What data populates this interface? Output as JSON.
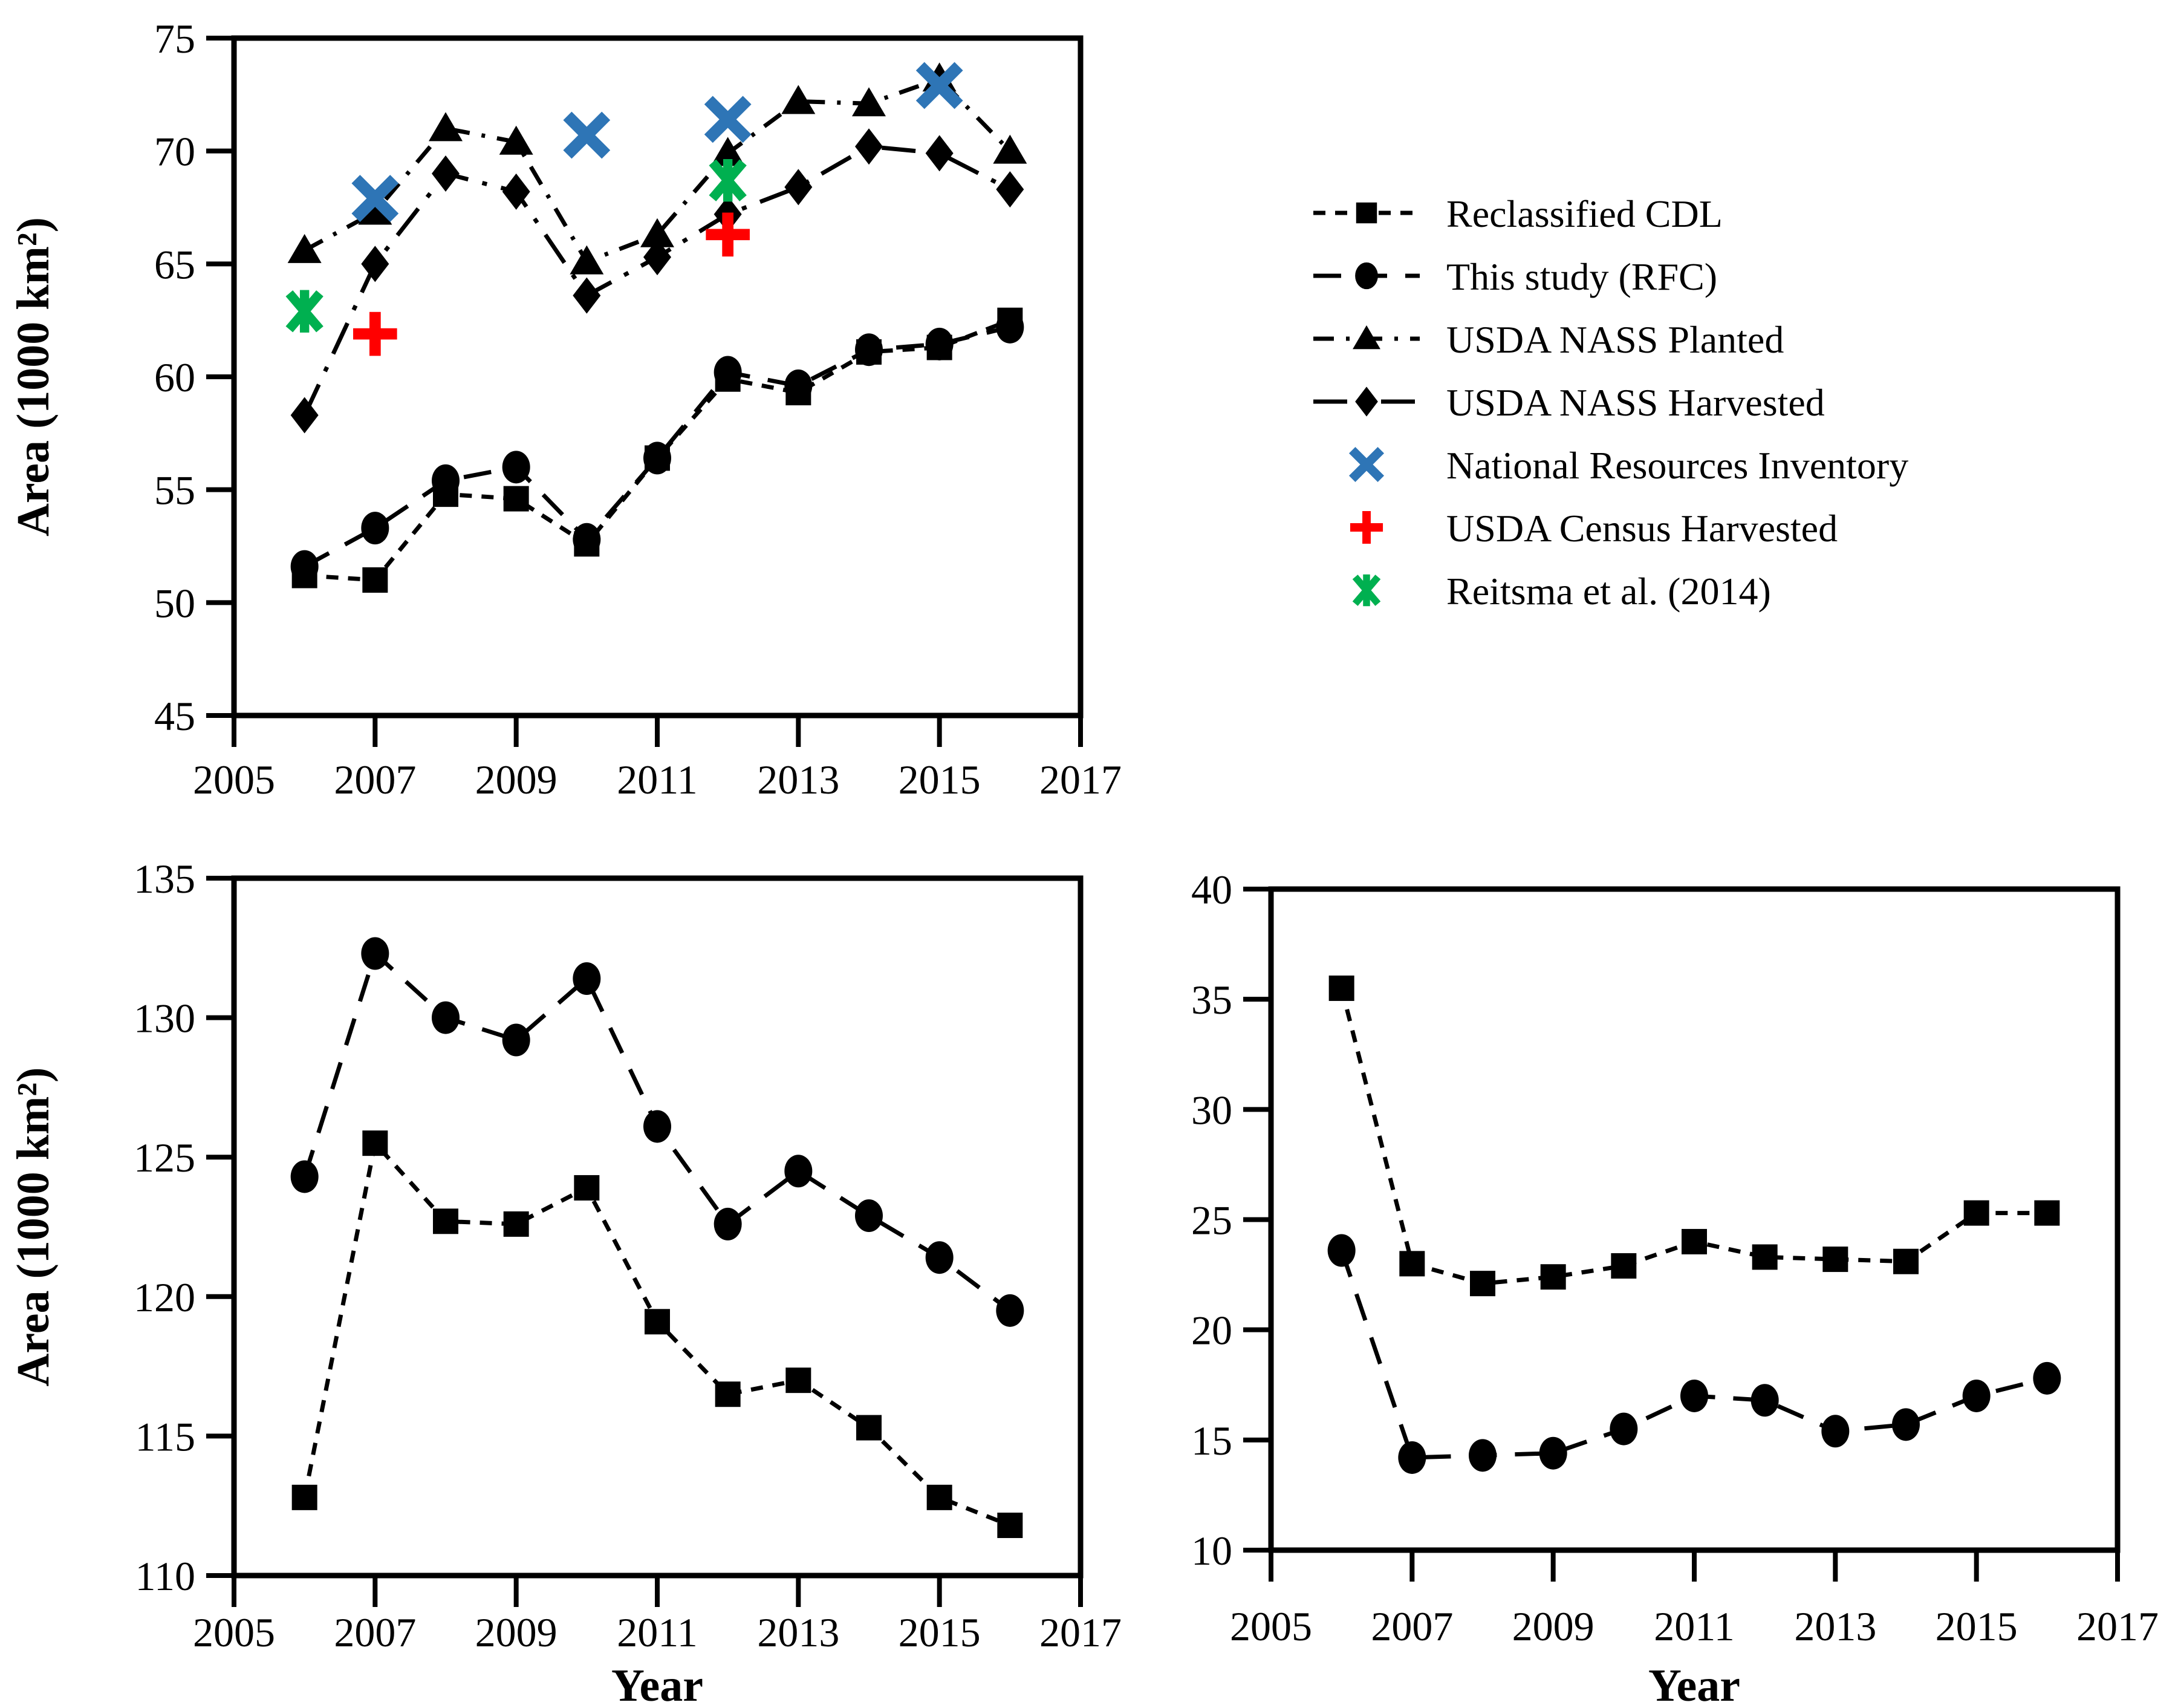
{
  "figure": {
    "background": "#ffffff",
    "y_axis_title": "Area (1000 km²)",
    "x_axis_title": "Year"
  },
  "colors": {
    "series_black": "#000000",
    "nri_blue": "#2e75b6",
    "census_red": "#ff0000",
    "reitsma_green": "#00b050"
  },
  "legend": {
    "items": [
      {
        "label": "Reclassified CDL",
        "marker": "square",
        "line": "dense-dash",
        "color": "#000000"
      },
      {
        "label": "This study (RFC)",
        "marker": "circle",
        "line": "long-dash",
        "color": "#000000"
      },
      {
        "label": "USDA NASS Planted",
        "marker": "triangle",
        "line": "dash-dot",
        "color": "#000000"
      },
      {
        "label": "USDA NASS Harvested",
        "marker": "diamond",
        "line": "dash-dot-long",
        "color": "#000000"
      },
      {
        "label": "National Resources Inventory",
        "marker": "xmark",
        "line": "none",
        "color": "#2e75b6"
      },
      {
        "label": "USDA Census Harvested",
        "marker": "plus",
        "line": "none",
        "color": "#ff0000"
      },
      {
        "label": "Reitsma et al. (2014)",
        "marker": "asterisk",
        "line": "none",
        "color": "#00b050"
      }
    ]
  },
  "chart_data": [
    {
      "id": "top-left",
      "type": "line",
      "title": "",
      "xlabel": "",
      "ylabel": "Area (1000 km²)",
      "xlim": [
        2005,
        2017
      ],
      "ylim": [
        45,
        75
      ],
      "xticks": [
        2005,
        2007,
        2009,
        2011,
        2013,
        2015,
        2017
      ],
      "yticks": [
        45,
        50,
        55,
        60,
        65,
        70,
        75
      ],
      "grid": false,
      "x": [
        2006,
        2007,
        2008,
        2009,
        2010,
        2011,
        2012,
        2013,
        2014,
        2015,
        2016
      ],
      "series": [
        {
          "name": "Reclassified CDL",
          "marker": "square",
          "line": "dense-dash",
          "color": "#000000",
          "values": [
            51.2,
            51.0,
            54.8,
            54.6,
            52.6,
            56.4,
            59.9,
            59.3,
            61.1,
            61.3,
            62.5
          ]
        },
        {
          "name": "This study (RFC)",
          "marker": "circle",
          "line": "long-dash",
          "color": "#000000",
          "values": [
            51.6,
            53.3,
            55.4,
            56.0,
            52.8,
            56.4,
            60.2,
            59.6,
            61.2,
            61.45,
            62.2
          ]
        },
        {
          "name": "USDA NASS Planted",
          "marker": "triangle",
          "line": "dash-dot",
          "color": "#000000",
          "values": [
            65.6,
            67.3,
            71.0,
            70.4,
            65.1,
            66.3,
            69.9,
            72.2,
            72.1,
            73.2,
            70.0
          ]
        },
        {
          "name": "USDA NASS Harvested",
          "marker": "diamond",
          "line": "dash-dot-long",
          "color": "#000000",
          "values": [
            58.3,
            65.0,
            69.0,
            68.2,
            63.6,
            65.3,
            67.2,
            68.4,
            70.2,
            69.9,
            68.3
          ]
        },
        {
          "name": "National Resources Inventory",
          "marker": "xmark",
          "line": "none",
          "color": "#2e75b6",
          "points": [
            [
              2007,
              67.9
            ],
            [
              2010,
              70.7
            ],
            [
              2012,
              71.4
            ],
            [
              2015,
              72.9
            ]
          ]
        },
        {
          "name": "USDA Census Harvested",
          "marker": "plus",
          "line": "none",
          "color": "#ff0000",
          "points": [
            [
              2007,
              61.9
            ],
            [
              2012,
              66.3
            ]
          ]
        },
        {
          "name": "Reitsma et al. (2014)",
          "marker": "asterisk",
          "line": "none",
          "color": "#00b050",
          "points": [
            [
              2006,
              62.9
            ],
            [
              2012,
              68.7
            ]
          ]
        }
      ]
    },
    {
      "id": "bottom-left",
      "type": "line",
      "title": "",
      "xlabel": "Year",
      "ylabel": "Area (1000 km²)",
      "xlim": [
        2005,
        2017
      ],
      "ylim": [
        110,
        135
      ],
      "xticks": [
        2005,
        2007,
        2009,
        2011,
        2013,
        2015,
        2017
      ],
      "yticks": [
        110,
        115,
        120,
        125,
        130,
        135
      ],
      "grid": false,
      "x": [
        2006,
        2007,
        2008,
        2009,
        2010,
        2011,
        2012,
        2013,
        2014,
        2015,
        2016
      ],
      "series": [
        {
          "name": "This study (RFC)",
          "marker": "circle",
          "line": "long-dash",
          "color": "#000000",
          "values": [
            124.3,
            132.3,
            130.0,
            129.2,
            131.4,
            126.1,
            122.6,
            124.5,
            122.9,
            121.4,
            119.5
          ]
        },
        {
          "name": "Reclassified CDL",
          "marker": "square",
          "line": "dense-dash",
          "color": "#000000",
          "values": [
            112.8,
            125.5,
            122.7,
            122.6,
            123.9,
            119.1,
            116.5,
            117.0,
            115.3,
            112.8,
            111.8
          ]
        }
      ]
    },
    {
      "id": "bottom-right",
      "type": "line",
      "title": "",
      "xlabel": "Year",
      "ylabel": "",
      "xlim": [
        2005,
        2017
      ],
      "ylim": [
        10,
        40
      ],
      "xticks": [
        2005,
        2007,
        2009,
        2011,
        2013,
        2015,
        2017
      ],
      "yticks": [
        10,
        15,
        20,
        25,
        30,
        35,
        40
      ],
      "grid": false,
      "x": [
        2006,
        2007,
        2008,
        2009,
        2010,
        2011,
        2012,
        2013,
        2014,
        2015,
        2016
      ],
      "series": [
        {
          "name": "Reclassified CDL",
          "marker": "square",
          "line": "dense-dash",
          "color": "#000000",
          "values": [
            35.5,
            23.0,
            22.1,
            22.4,
            22.9,
            24.0,
            23.3,
            23.2,
            23.1,
            25.3,
            25.3
          ]
        },
        {
          "name": "This study (RFC)",
          "marker": "circle",
          "line": "long-dash",
          "color": "#000000",
          "values": [
            23.6,
            14.2,
            14.3,
            14.4,
            15.5,
            17.0,
            16.8,
            15.4,
            15.7,
            17.0,
            17.8
          ]
        }
      ]
    }
  ]
}
